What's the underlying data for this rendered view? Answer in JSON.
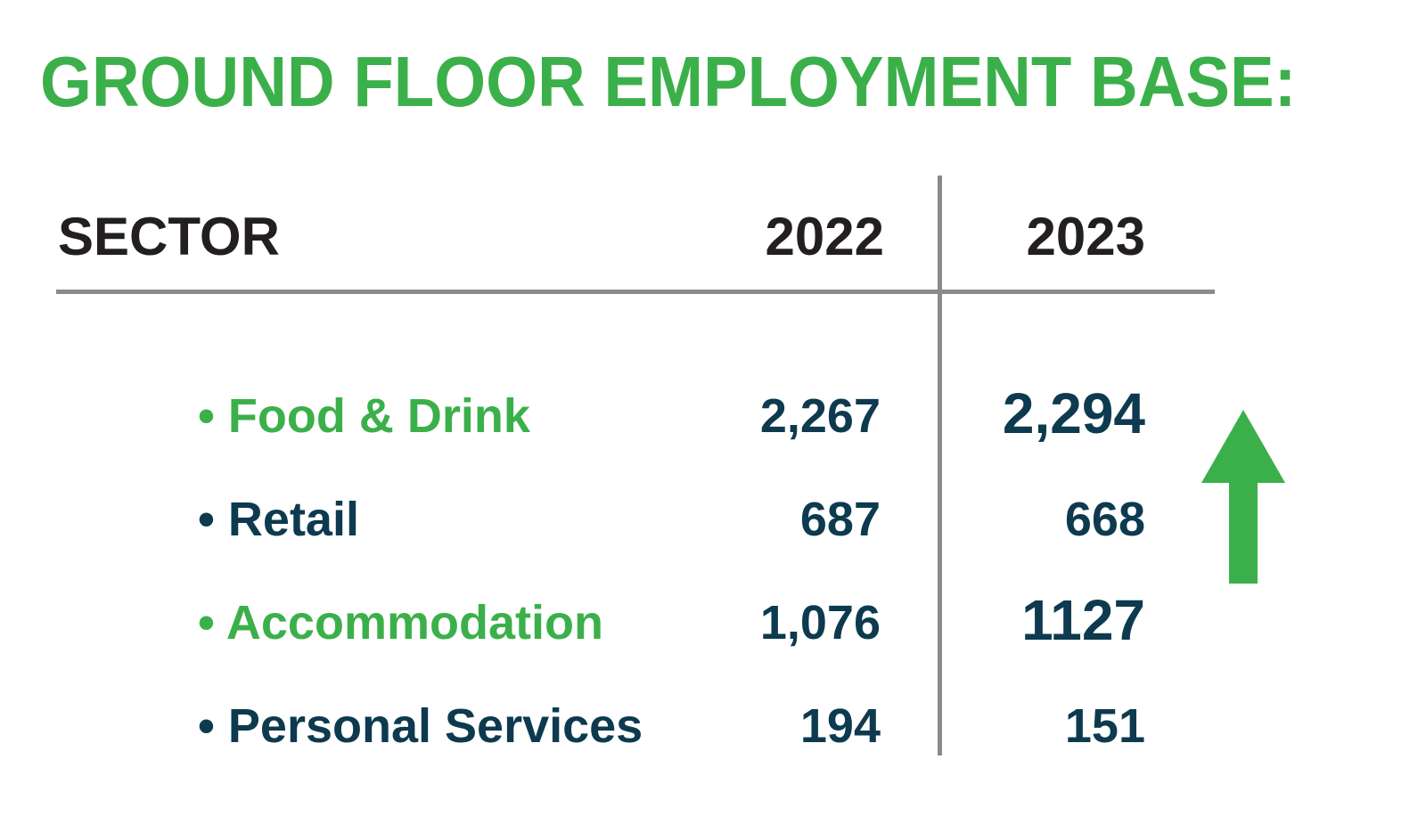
{
  "title": "GROUND FLOOR EMPLOYMENT BASE:",
  "table": {
    "headers": {
      "sector": "SECTOR",
      "y2022": "2022",
      "y2023": "2023"
    },
    "rows": [
      {
        "sector": "• Food & Drink",
        "y2022": "2,267",
        "y2023": "2,294"
      },
      {
        "sector": "• Retail",
        "y2022": "687",
        "y2023": "668"
      },
      {
        "sector": "• Accommodation",
        "y2022": "1,076",
        "y2023": "1127"
      },
      {
        "sector": "• Personal Services",
        "y2022": "194",
        "y2023": "151"
      }
    ]
  },
  "colors": {
    "green": "#3bb04a",
    "navy": "#0d3a4f",
    "header": "#231f20",
    "rule": "#8a8a8a"
  },
  "icons": {
    "trend": "up-arrow-icon"
  }
}
